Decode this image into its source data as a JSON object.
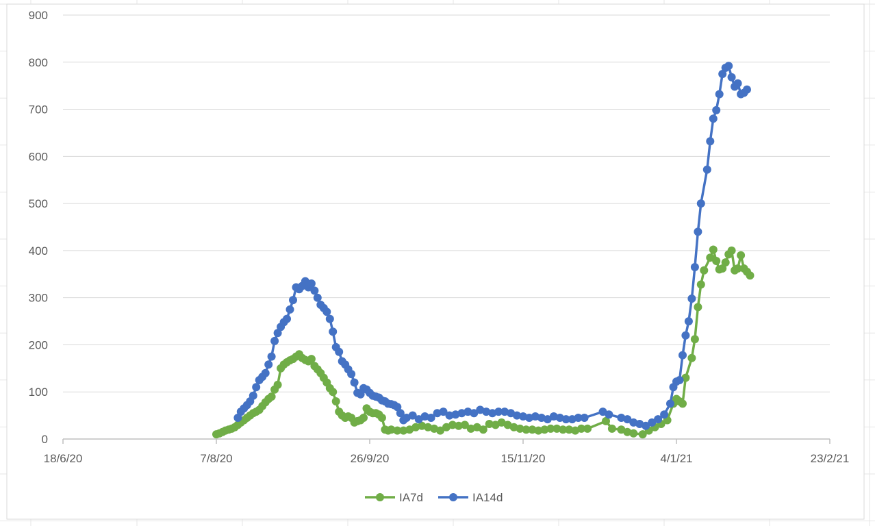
{
  "chart_data": {
    "type": "line",
    "title": "",
    "xlabel": "",
    "ylabel": "",
    "x_axis": {
      "type": "date",
      "min": "2020-06-18",
      "max": "2021-02-23",
      "tick_labels": [
        "18/6/20",
        "7/8/20",
        "26/9/20",
        "15/11/20",
        "4/1/21",
        "23/2/21"
      ]
    },
    "y_axis": {
      "min": 0,
      "max": 900,
      "tick_labels": [
        "0",
        "100",
        "200",
        "300",
        "400",
        "500",
        "600",
        "700",
        "800",
        "900"
      ]
    },
    "grid": "horizontal",
    "legend": {
      "position": "bottom",
      "labels": [
        "IA7d",
        "IA14d"
      ]
    },
    "series": [
      {
        "name": "IA7d",
        "color": "#70ad47",
        "points": [
          [
            "2020-08-07",
            10
          ],
          [
            "2020-08-08",
            12
          ],
          [
            "2020-08-09",
            15
          ],
          [
            "2020-08-10",
            18
          ],
          [
            "2020-08-11",
            20
          ],
          [
            "2020-08-12",
            22
          ],
          [
            "2020-08-13",
            25
          ],
          [
            "2020-08-14",
            30
          ],
          [
            "2020-08-15",
            35
          ],
          [
            "2020-08-16",
            40
          ],
          [
            "2020-08-17",
            45
          ],
          [
            "2020-08-18",
            50
          ],
          [
            "2020-08-19",
            55
          ],
          [
            "2020-08-20",
            58
          ],
          [
            "2020-08-21",
            62
          ],
          [
            "2020-08-22",
            70
          ],
          [
            "2020-08-23",
            78
          ],
          [
            "2020-08-24",
            85
          ],
          [
            "2020-08-25",
            90
          ],
          [
            "2020-08-26",
            105
          ],
          [
            "2020-08-27",
            115
          ],
          [
            "2020-08-28",
            150
          ],
          [
            "2020-08-29",
            158
          ],
          [
            "2020-08-30",
            163
          ],
          [
            "2020-08-31",
            167
          ],
          [
            "2020-09-01",
            170
          ],
          [
            "2020-09-02",
            175
          ],
          [
            "2020-09-03",
            180
          ],
          [
            "2020-09-04",
            172
          ],
          [
            "2020-09-05",
            168
          ],
          [
            "2020-09-06",
            165
          ],
          [
            "2020-09-07",
            170
          ],
          [
            "2020-09-08",
            155
          ],
          [
            "2020-09-09",
            148
          ],
          [
            "2020-09-10",
            140
          ],
          [
            "2020-09-11",
            130
          ],
          [
            "2020-09-12",
            120
          ],
          [
            "2020-09-13",
            108
          ],
          [
            "2020-09-14",
            100
          ],
          [
            "2020-09-15",
            80
          ],
          [
            "2020-09-16",
            58
          ],
          [
            "2020-09-17",
            50
          ],
          [
            "2020-09-18",
            45
          ],
          [
            "2020-09-19",
            48
          ],
          [
            "2020-09-20",
            45
          ],
          [
            "2020-09-21",
            35
          ],
          [
            "2020-09-22",
            38
          ],
          [
            "2020-09-23",
            40
          ],
          [
            "2020-09-24",
            45
          ],
          [
            "2020-09-25",
            65
          ],
          [
            "2020-09-26",
            58
          ],
          [
            "2020-09-27",
            55
          ],
          [
            "2020-09-28",
            55
          ],
          [
            "2020-09-29",
            52
          ],
          [
            "2020-09-30",
            45
          ],
          [
            "2020-10-01",
            20
          ],
          [
            "2020-10-02",
            18
          ],
          [
            "2020-10-03",
            20
          ],
          [
            "2020-10-05",
            18
          ],
          [
            "2020-10-07",
            18
          ],
          [
            "2020-10-09",
            20
          ],
          [
            "2020-10-11",
            25
          ],
          [
            "2020-10-13",
            28
          ],
          [
            "2020-10-15",
            25
          ],
          [
            "2020-10-17",
            22
          ],
          [
            "2020-10-19",
            18
          ],
          [
            "2020-10-21",
            25
          ],
          [
            "2020-10-23",
            30
          ],
          [
            "2020-10-25",
            28
          ],
          [
            "2020-10-27",
            30
          ],
          [
            "2020-10-29",
            22
          ],
          [
            "2020-10-31",
            25
          ],
          [
            "2020-11-02",
            20
          ],
          [
            "2020-11-04",
            32
          ],
          [
            "2020-11-06",
            30
          ],
          [
            "2020-11-08",
            35
          ],
          [
            "2020-11-10",
            30
          ],
          [
            "2020-11-12",
            25
          ],
          [
            "2020-11-14",
            22
          ],
          [
            "2020-11-16",
            20
          ],
          [
            "2020-11-18",
            20
          ],
          [
            "2020-11-20",
            18
          ],
          [
            "2020-11-22",
            20
          ],
          [
            "2020-11-24",
            22
          ],
          [
            "2020-11-26",
            22
          ],
          [
            "2020-11-28",
            20
          ],
          [
            "2020-11-30",
            20
          ],
          [
            "2020-12-02",
            18
          ],
          [
            "2020-12-04",
            22
          ],
          [
            "2020-12-06",
            22
          ],
          [
            "2020-12-12",
            38
          ],
          [
            "2020-12-14",
            22
          ],
          [
            "2020-12-17",
            20
          ],
          [
            "2020-12-19",
            15
          ],
          [
            "2020-12-21",
            12
          ],
          [
            "2020-12-24",
            10
          ],
          [
            "2020-12-26",
            18
          ],
          [
            "2020-12-28",
            25
          ],
          [
            "2020-12-30",
            32
          ],
          [
            "2021-01-01",
            40
          ],
          [
            "2021-01-03",
            75
          ],
          [
            "2021-01-04",
            85
          ],
          [
            "2021-01-05",
            80
          ],
          [
            "2021-01-06",
            75
          ],
          [
            "2021-01-07",
            130
          ],
          [
            "2021-01-09",
            172
          ],
          [
            "2021-01-10",
            212
          ],
          [
            "2021-01-11",
            280
          ],
          [
            "2021-01-12",
            328
          ],
          [
            "2021-01-13",
            358
          ],
          [
            "2021-01-15",
            385
          ],
          [
            "2021-01-16",
            402
          ],
          [
            "2021-01-17",
            378
          ],
          [
            "2021-01-18",
            360
          ],
          [
            "2021-01-19",
            362
          ],
          [
            "2021-01-20",
            375
          ],
          [
            "2021-01-21",
            392
          ],
          [
            "2021-01-22",
            400
          ],
          [
            "2021-01-23",
            358
          ],
          [
            "2021-01-24",
            362
          ],
          [
            "2021-01-25",
            390
          ],
          [
            "2021-01-26",
            362
          ],
          [
            "2021-01-27",
            355
          ],
          [
            "2021-01-28",
            347
          ]
        ]
      },
      {
        "name": "IA14d",
        "color": "#4472c4",
        "points": [
          [
            "2020-08-14",
            45
          ],
          [
            "2020-08-15",
            58
          ],
          [
            "2020-08-16",
            65
          ],
          [
            "2020-08-17",
            72
          ],
          [
            "2020-08-18",
            80
          ],
          [
            "2020-08-19",
            92
          ],
          [
            "2020-08-20",
            110
          ],
          [
            "2020-08-21",
            125
          ],
          [
            "2020-08-22",
            132
          ],
          [
            "2020-08-23",
            140
          ],
          [
            "2020-08-24",
            158
          ],
          [
            "2020-08-25",
            175
          ],
          [
            "2020-08-26",
            208
          ],
          [
            "2020-08-27",
            225
          ],
          [
            "2020-08-28",
            238
          ],
          [
            "2020-08-29",
            248
          ],
          [
            "2020-08-30",
            255
          ],
          [
            "2020-08-31",
            275
          ],
          [
            "2020-09-01",
            295
          ],
          [
            "2020-09-02",
            322
          ],
          [
            "2020-09-03",
            318
          ],
          [
            "2020-09-04",
            325
          ],
          [
            "2020-09-05",
            335
          ],
          [
            "2020-09-06",
            322
          ],
          [
            "2020-09-07",
            330
          ],
          [
            "2020-09-08",
            315
          ],
          [
            "2020-09-09",
            300
          ],
          [
            "2020-09-10",
            285
          ],
          [
            "2020-09-11",
            278
          ],
          [
            "2020-09-12",
            270
          ],
          [
            "2020-09-13",
            255
          ],
          [
            "2020-09-14",
            228
          ],
          [
            "2020-09-15",
            195
          ],
          [
            "2020-09-16",
            185
          ],
          [
            "2020-09-17",
            165
          ],
          [
            "2020-09-18",
            158
          ],
          [
            "2020-09-19",
            148
          ],
          [
            "2020-09-20",
            138
          ],
          [
            "2020-09-21",
            120
          ],
          [
            "2020-09-22",
            98
          ],
          [
            "2020-09-23",
            95
          ],
          [
            "2020-09-24",
            108
          ],
          [
            "2020-09-25",
            105
          ],
          [
            "2020-09-26",
            98
          ],
          [
            "2020-09-27",
            92
          ],
          [
            "2020-09-28",
            90
          ],
          [
            "2020-09-29",
            88
          ],
          [
            "2020-09-30",
            82
          ],
          [
            "2020-10-01",
            80
          ],
          [
            "2020-10-02",
            75
          ],
          [
            "2020-10-03",
            74
          ],
          [
            "2020-10-04",
            72
          ],
          [
            "2020-10-05",
            68
          ],
          [
            "2020-10-06",
            55
          ],
          [
            "2020-10-07",
            40
          ],
          [
            "2020-10-08",
            45
          ],
          [
            "2020-10-10",
            50
          ],
          [
            "2020-10-12",
            42
          ],
          [
            "2020-10-14",
            48
          ],
          [
            "2020-10-16",
            45
          ],
          [
            "2020-10-18",
            55
          ],
          [
            "2020-10-20",
            58
          ],
          [
            "2020-10-22",
            50
          ],
          [
            "2020-10-24",
            52
          ],
          [
            "2020-10-26",
            55
          ],
          [
            "2020-10-28",
            58
          ],
          [
            "2020-10-30",
            55
          ],
          [
            "2020-11-01",
            62
          ],
          [
            "2020-11-03",
            58
          ],
          [
            "2020-11-05",
            55
          ],
          [
            "2020-11-07",
            58
          ],
          [
            "2020-11-09",
            58
          ],
          [
            "2020-11-11",
            55
          ],
          [
            "2020-11-13",
            50
          ],
          [
            "2020-11-15",
            48
          ],
          [
            "2020-11-17",
            45
          ],
          [
            "2020-11-19",
            48
          ],
          [
            "2020-11-21",
            45
          ],
          [
            "2020-11-23",
            42
          ],
          [
            "2020-11-25",
            48
          ],
          [
            "2020-11-27",
            45
          ],
          [
            "2020-11-29",
            42
          ],
          [
            "2020-12-01",
            42
          ],
          [
            "2020-12-03",
            45
          ],
          [
            "2020-12-05",
            45
          ],
          [
            "2020-12-11",
            58
          ],
          [
            "2020-12-13",
            52
          ],
          [
            "2020-12-17",
            45
          ],
          [
            "2020-12-19",
            42
          ],
          [
            "2020-12-21",
            35
          ],
          [
            "2020-12-23",
            32
          ],
          [
            "2020-12-25",
            28
          ],
          [
            "2020-12-27",
            35
          ],
          [
            "2020-12-29",
            42
          ],
          [
            "2020-12-31",
            52
          ],
          [
            "2021-01-02",
            75
          ],
          [
            "2021-01-03",
            110
          ],
          [
            "2021-01-04",
            122
          ],
          [
            "2021-01-05",
            125
          ],
          [
            "2021-01-06",
            178
          ],
          [
            "2021-01-07",
            220
          ],
          [
            "2021-01-08",
            250
          ],
          [
            "2021-01-09",
            298
          ],
          [
            "2021-01-10",
            365
          ],
          [
            "2021-01-11",
            440
          ],
          [
            "2021-01-12",
            500
          ],
          [
            "2021-01-14",
            572
          ],
          [
            "2021-01-15",
            632
          ],
          [
            "2021-01-16",
            680
          ],
          [
            "2021-01-17",
            698
          ],
          [
            "2021-01-18",
            732
          ],
          [
            "2021-01-19",
            775
          ],
          [
            "2021-01-20",
            788
          ],
          [
            "2021-01-21",
            792
          ],
          [
            "2021-01-22",
            768
          ],
          [
            "2021-01-23",
            748
          ],
          [
            "2021-01-24",
            755
          ],
          [
            "2021-01-25",
            732
          ],
          [
            "2021-01-26",
            735
          ],
          [
            "2021-01-27",
            742
          ]
        ]
      }
    ]
  }
}
